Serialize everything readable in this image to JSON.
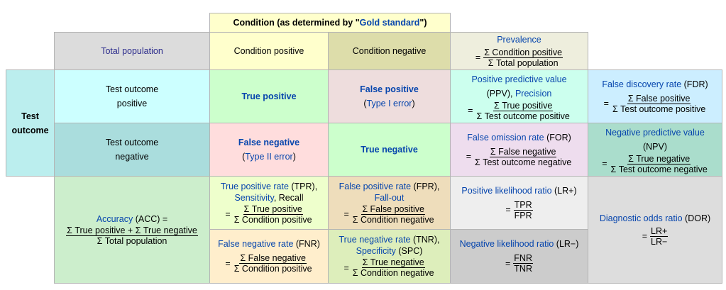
{
  "header": {
    "condition_prefix": "Condition (as determined by \"",
    "condition_link": "Gold standard",
    "condition_suffix": "\")"
  },
  "total_population": "Total population",
  "condition_positive": "Condition positive",
  "condition_negative": "Condition negative",
  "prevalence": {
    "label": "Prevalence",
    "eq": "=",
    "num": "Σ Condition positive",
    "den": "Σ Total population"
  },
  "test_outcome_label": {
    "line1": "Test",
    "line2": "outcome"
  },
  "test_outcome_positive": {
    "line1": "Test outcome",
    "line2": "positive"
  },
  "test_outcome_negative": {
    "line1": "Test outcome",
    "line2": "negative"
  },
  "true_positive": "True positive",
  "false_positive": {
    "label": "False positive",
    "paren_open": "(",
    "link": "Type I error",
    "paren_close": ")"
  },
  "false_negative": {
    "label": "False negative",
    "paren_open": "(",
    "link": "Type II error",
    "paren_close": ")"
  },
  "true_negative": "True negative",
  "ppv": {
    "label": "Positive predictive value",
    "abbr_open": "(PPV), ",
    "alt": "Precision",
    "eq": "=",
    "num": "Σ True positive",
    "den": "Σ Test outcome positive"
  },
  "fdr": {
    "label": "False discovery rate",
    "abbr": " (FDR)",
    "eq": "=",
    "num": "Σ False positive",
    "den": "Σ Test outcome positive"
  },
  "for": {
    "label": "False omission rate",
    "abbr": " (FOR)",
    "eq": "=",
    "num": "Σ False negative",
    "den": "Σ Test outcome negative"
  },
  "npv": {
    "label": "Negative predictive value",
    "abbr": "(NPV)",
    "eq": "=",
    "num": "Σ True negative",
    "den": "Σ Test outcome negative"
  },
  "accuracy": {
    "label": "Accuracy",
    "abbr": " (ACC) =",
    "num": "Σ True positive + Σ True negative",
    "den": "Σ Total population"
  },
  "tpr": {
    "label": "True positive rate",
    "abbr": " (TPR),",
    "alt1": "Sensitivity",
    "sep": ", ",
    "alt2": "Recall",
    "eq": "=",
    "num": "Σ True positive",
    "den": "Σ Condition positive"
  },
  "fpr": {
    "label": "False positive rate",
    "abbr": " (FPR),",
    "alt": "Fall-out",
    "eq": "=",
    "num": "Σ False positive",
    "den": "Σ Condition negative"
  },
  "fnr": {
    "label": "False negative rate",
    "abbr": " (FNR)",
    "eq": "=",
    "num": "Σ False negative",
    "den": "Σ Condition positive"
  },
  "tnr": {
    "label": "True negative rate",
    "abbr": " (TNR),",
    "alt": "Specificity",
    "alt_abbr": " (SPC)",
    "eq": "=",
    "num": "Σ True negative",
    "den": "Σ Condition negative"
  },
  "lr_pos": {
    "label": "Positive likelihood ratio",
    "abbr": " (LR+)",
    "eq": "=",
    "num": "TPR",
    "den": "FPR"
  },
  "lr_neg": {
    "label": "Negative likelihood ratio",
    "abbr": " (LR−)",
    "eq": "=",
    "num": "FNR",
    "den": "TNR"
  },
  "dor": {
    "label": "Diagnostic odds ratio",
    "abbr": " (DOR)",
    "eq": "=",
    "num": "LR+",
    "den": "LR−"
  },
  "colors": {
    "gray": "#dcdcdc",
    "yellow": "#ffffcc",
    "olive": "#ddddaa",
    "prevalence": "#eeeedd",
    "cyan": "#bbeeee",
    "light_cyan": "#ccffff",
    "teal": "#aadddd",
    "true_green": "#ccffcc",
    "false_pink": "#eedddd",
    "false_neg_pink": "#ffdddd",
    "ppv_mint": "#ccffee",
    "fdr_blue": "#cceeff",
    "for_lavender": "#eeddee",
    "npv_green": "#aaddcc",
    "acc_green": "#cceecc",
    "tpr_yellow": "#eeffcc",
    "fpr_peach": "#eeddbb",
    "fnr_peach": "#ffeecc",
    "tnr_green": "#ddeebb",
    "lr_pos_gray": "#eeeeee",
    "lr_neg_gray": "#cccccc",
    "dor_gray": "#dddddd",
    "link": "#0645ad"
  }
}
